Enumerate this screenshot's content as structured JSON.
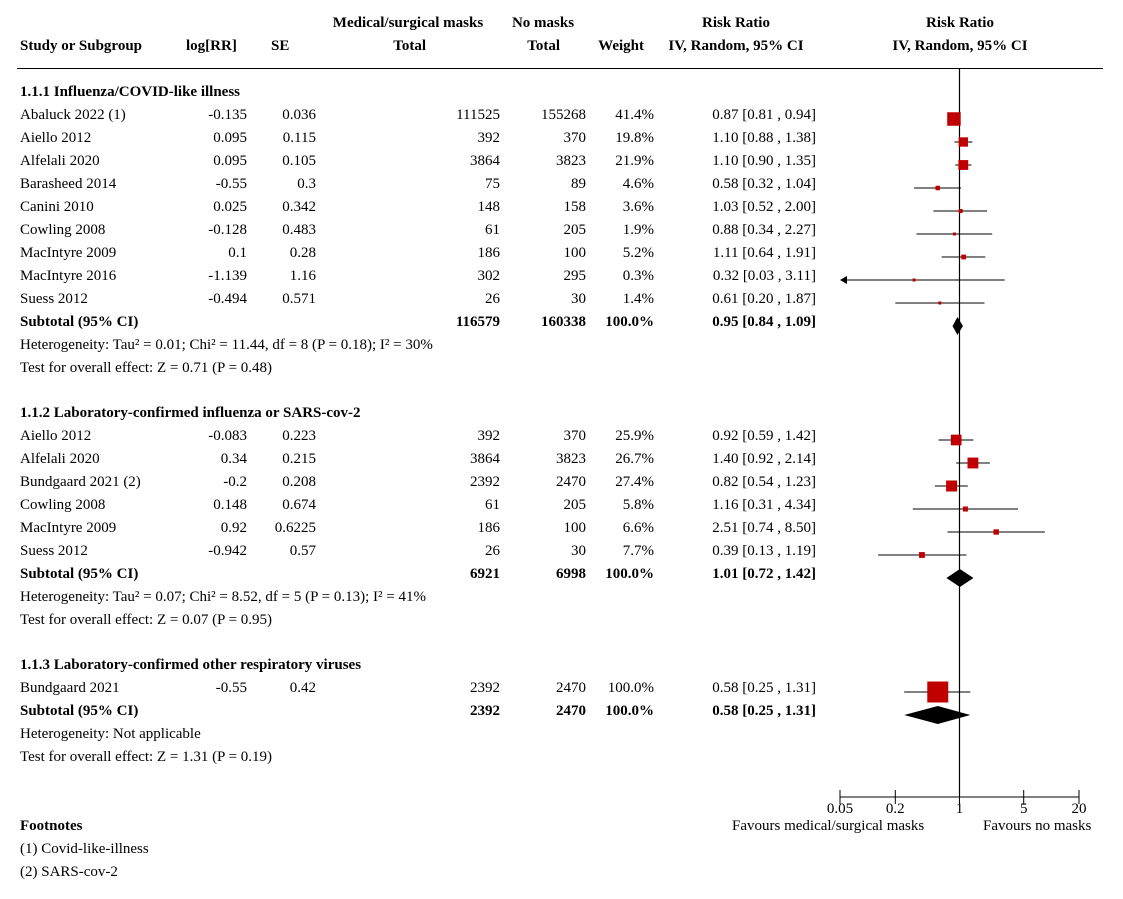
{
  "header": {
    "study": "Study or Subgroup",
    "logrr": "log[RR]",
    "se": "SE",
    "masks_group": "Medical/surgical masks",
    "masks_total": "Total",
    "nomasks_group": "No masks",
    "nomasks_total": "Total",
    "weight": "Weight",
    "rr_text_1": "Risk Ratio",
    "rr_text_2": "IV, Random, 95% CI",
    "rr_plot_1": "Risk Ratio",
    "rr_plot_2": "IV, Random, 95% CI"
  },
  "groups": [
    {
      "title": "1.1.1 Influenza/COVID-like illness",
      "studies": [
        {
          "name": "Abaluck 2022 (1)",
          "logrr": "-0.135",
          "se": "0.036",
          "masks": "111525",
          "nomasks": "155268",
          "weight": "41.4%",
          "ci": "0.87 [0.81 , 0.94]"
        },
        {
          "name": "Aiello 2012",
          "logrr": "0.095",
          "se": "0.115",
          "masks": "392",
          "nomasks": "370",
          "weight": "19.8%",
          "ci": "1.10 [0.88 , 1.38]"
        },
        {
          "name": "Alfelali 2020",
          "logrr": "0.095",
          "se": "0.105",
          "masks": "3864",
          "nomasks": "3823",
          "weight": "21.9%",
          "ci": "1.10 [0.90 , 1.35]"
        },
        {
          "name": "Barasheed 2014",
          "logrr": "-0.55",
          "se": "0.3",
          "masks": "75",
          "nomasks": "89",
          "weight": "4.6%",
          "ci": "0.58 [0.32 , 1.04]"
        },
        {
          "name": "Canini 2010",
          "logrr": "0.025",
          "se": "0.342",
          "masks": "148",
          "nomasks": "158",
          "weight": "3.6%",
          "ci": "1.03 [0.52 , 2.00]"
        },
        {
          "name": "Cowling 2008",
          "logrr": "-0.128",
          "se": "0.483",
          "masks": "61",
          "nomasks": "205",
          "weight": "1.9%",
          "ci": "0.88 [0.34 , 2.27]"
        },
        {
          "name": "MacIntyre 2009",
          "logrr": "0.1",
          "se": "0.28",
          "masks": "186",
          "nomasks": "100",
          "weight": "5.2%",
          "ci": "1.11 [0.64 , 1.91]"
        },
        {
          "name": "MacIntyre 2016",
          "logrr": "-1.139",
          "se": "1.16",
          "masks": "302",
          "nomasks": "295",
          "weight": "0.3%",
          "ci": "0.32 [0.03 , 3.11]"
        },
        {
          "name": "Suess 2012",
          "logrr": "-0.494",
          "se": "0.571",
          "masks": "26",
          "nomasks": "30",
          "weight": "1.4%",
          "ci": "0.61 [0.20 , 1.87]"
        }
      ],
      "subtotal": {
        "label": "Subtotal (95% CI)",
        "masks": "116579",
        "nomasks": "160338",
        "weight": "100.0%",
        "ci": "0.95 [0.84 , 1.09]"
      },
      "heterogeneity": "Heterogeneity: Tau² = 0.01; Chi² = 11.44, df = 8 (P = 0.18); I² = 30%",
      "overall": "Test for overall effect: Z = 0.71 (P = 0.48)"
    },
    {
      "title": "1.1.2 Laboratory-confirmed influenza or SARS-cov-2",
      "studies": [
        {
          "name": "Aiello 2012",
          "logrr": "-0.083",
          "se": "0.223",
          "masks": "392",
          "nomasks": "370",
          "weight": "25.9%",
          "ci": "0.92 [0.59 , 1.42]"
        },
        {
          "name": "Alfelali 2020",
          "logrr": "0.34",
          "se": "0.215",
          "masks": "3864",
          "nomasks": "3823",
          "weight": "26.7%",
          "ci": "1.40 [0.92 , 2.14]"
        },
        {
          "name": "Bundgaard 2021 (2)",
          "logrr": "-0.2",
          "se": "0.208",
          "masks": "2392",
          "nomasks": "2470",
          "weight": "27.4%",
          "ci": "0.82 [0.54 , 1.23]"
        },
        {
          "name": "Cowling 2008",
          "logrr": "0.148",
          "se": "0.674",
          "masks": "61",
          "nomasks": "205",
          "weight": "5.8%",
          "ci": "1.16 [0.31 , 4.34]"
        },
        {
          "name": "MacIntyre 2009",
          "logrr": "0.92",
          "se": "0.6225",
          "masks": "186",
          "nomasks": "100",
          "weight": "6.6%",
          "ci": "2.51 [0.74 , 8.50]"
        },
        {
          "name": "Suess 2012",
          "logrr": "-0.942",
          "se": "0.57",
          "masks": "26",
          "nomasks": "30",
          "weight": "7.7%",
          "ci": "0.39 [0.13 , 1.19]"
        }
      ],
      "subtotal": {
        "label": "Subtotal (95% CI)",
        "masks": "6921",
        "nomasks": "6998",
        "weight": "100.0%",
        "ci": "1.01 [0.72 , 1.42]"
      },
      "heterogeneity": "Heterogeneity: Tau² = 0.07; Chi² = 8.52, df = 5 (P = 0.13); I² = 41%",
      "overall": "Test for overall effect: Z = 0.07 (P = 0.95)"
    },
    {
      "title": "1.1.3 Laboratory-confirmed other respiratory viruses",
      "studies": [
        {
          "name": "Bundgaard 2021",
          "logrr": "-0.55",
          "se": "0.42",
          "masks": "2392",
          "nomasks": "2470",
          "weight": "100.0%",
          "ci": "0.58 [0.25 , 1.31]"
        }
      ],
      "subtotal": {
        "label": "Subtotal (95% CI)",
        "masks": "2392",
        "nomasks": "2470",
        "weight": "100.0%",
        "ci": "0.58 [0.25 , 1.31]"
      },
      "heterogeneity": "Heterogeneity: Not applicable",
      "overall": "Test for overall effect: Z = 1.31 (P = 0.19)"
    }
  ],
  "footnotes": {
    "title": "Footnotes",
    "items": [
      "(1) Covid-like-illness",
      "(2) SARS-cov-2"
    ]
  },
  "chart_data": {
    "type": "forest",
    "x_scale": "log",
    "xlim": [
      0.05,
      20
    ],
    "null_line": 1,
    "ticks": [
      "0.05",
      "0.2",
      "1",
      "5",
      "20"
    ],
    "tick_values": [
      0.05,
      0.2,
      1,
      5,
      20
    ],
    "favours_left": "Favours medical/surgical masks",
    "favours_right": "Favours no masks",
    "colors": {
      "study_marker": "#c00000",
      "diamond": "#000000",
      "line": "#000000"
    },
    "series": [
      {
        "group": "1.1.1 Influenza/COVID-like illness",
        "studies": [
          {
            "rr": 0.87,
            "lo": 0.81,
            "hi": 0.94,
            "weight": 41.4
          },
          {
            "rr": 1.1,
            "lo": 0.88,
            "hi": 1.38,
            "weight": 19.8
          },
          {
            "rr": 1.1,
            "lo": 0.9,
            "hi": 1.35,
            "weight": 21.9
          },
          {
            "rr": 0.58,
            "lo": 0.32,
            "hi": 1.04,
            "weight": 4.6
          },
          {
            "rr": 1.03,
            "lo": 0.52,
            "hi": 2.0,
            "weight": 3.6
          },
          {
            "rr": 0.88,
            "lo": 0.34,
            "hi": 2.27,
            "weight": 1.9
          },
          {
            "rr": 1.11,
            "lo": 0.64,
            "hi": 1.91,
            "weight": 5.2
          },
          {
            "rr": 0.32,
            "lo": 0.03,
            "hi": 3.11,
            "weight": 0.3
          },
          {
            "rr": 0.61,
            "lo": 0.2,
            "hi": 1.87,
            "weight": 1.4
          }
        ],
        "subtotal": {
          "rr": 0.95,
          "lo": 0.84,
          "hi": 1.09
        }
      },
      {
        "group": "1.1.2 Laboratory-confirmed influenza or SARS-cov-2",
        "studies": [
          {
            "rr": 0.92,
            "lo": 0.59,
            "hi": 1.42,
            "weight": 25.9
          },
          {
            "rr": 1.4,
            "lo": 0.92,
            "hi": 2.14,
            "weight": 26.7
          },
          {
            "rr": 0.82,
            "lo": 0.54,
            "hi": 1.23,
            "weight": 27.4
          },
          {
            "rr": 1.16,
            "lo": 0.31,
            "hi": 4.34,
            "weight": 5.8
          },
          {
            "rr": 2.51,
            "lo": 0.74,
            "hi": 8.5,
            "weight": 6.6
          },
          {
            "rr": 0.39,
            "lo": 0.13,
            "hi": 1.19,
            "weight": 7.7
          }
        ],
        "subtotal": {
          "rr": 1.01,
          "lo": 0.72,
          "hi": 1.42
        }
      },
      {
        "group": "1.1.3 Laboratory-confirmed other respiratory viruses",
        "studies": [
          {
            "rr": 0.58,
            "lo": 0.25,
            "hi": 1.31,
            "weight": 100.0
          }
        ],
        "subtotal": {
          "rr": 0.58,
          "lo": 0.25,
          "hi": 1.31
        }
      }
    ]
  }
}
